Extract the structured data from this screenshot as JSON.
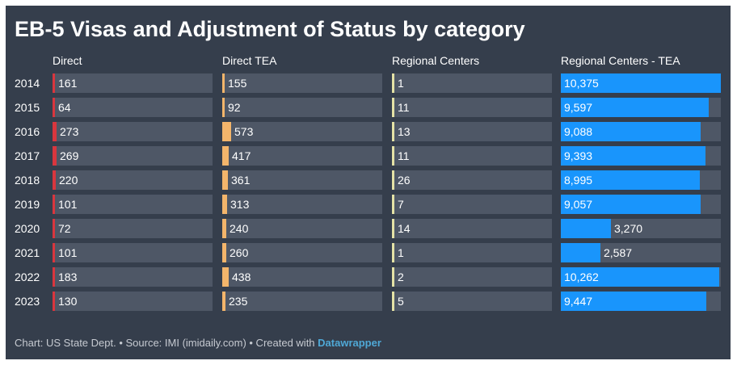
{
  "chart_data": {
    "type": "bar",
    "title": "EB-5 Visas and Adjustment of Status by category",
    "categories": [
      "2014",
      "2015",
      "2016",
      "2017",
      "2018",
      "2019",
      "2020",
      "2021",
      "2022",
      "2023"
    ],
    "series": [
      {
        "name": "Direct",
        "color": "#d9363e",
        "max": 10375,
        "values": [
          161,
          64,
          273,
          269,
          220,
          101,
          72,
          101,
          183,
          130
        ],
        "labels": [
          "161",
          "64",
          "273",
          "269",
          "220",
          "101",
          "72",
          "101",
          "183",
          "130"
        ]
      },
      {
        "name": "Direct TEA",
        "color": "#f3b56b",
        "max": 10375,
        "values": [
          155,
          92,
          573,
          417,
          361,
          313,
          240,
          260,
          438,
          235
        ],
        "labels": [
          "155",
          "92",
          "573",
          "417",
          "361",
          "313",
          "240",
          "260",
          "438",
          "235"
        ]
      },
      {
        "name": "Regional Centers",
        "color": "#e4e2a6",
        "max": 10375,
        "values": [
          1,
          11,
          13,
          11,
          26,
          7,
          14,
          1,
          2,
          5
        ],
        "labels": [
          "1",
          "11",
          "13",
          "11",
          "26",
          "7",
          "14",
          "1",
          "2",
          "5"
        ]
      },
      {
        "name": "Regional Centers - TEA",
        "color": "#1995fc",
        "max": 10375,
        "values": [
          10375,
          9597,
          9088,
          9393,
          8995,
          9057,
          3270,
          2587,
          10262,
          9447
        ],
        "labels": [
          "10,375",
          "9,597",
          "9,088",
          "9,393",
          "8,995",
          "9,057",
          "3,270",
          "2,587",
          "10,262",
          "9,447"
        ]
      }
    ]
  },
  "footer": {
    "text": "Chart: US State Dept. • Source: IMI (imidaily.com) • Created with ",
    "brand": "Datawrapper"
  }
}
